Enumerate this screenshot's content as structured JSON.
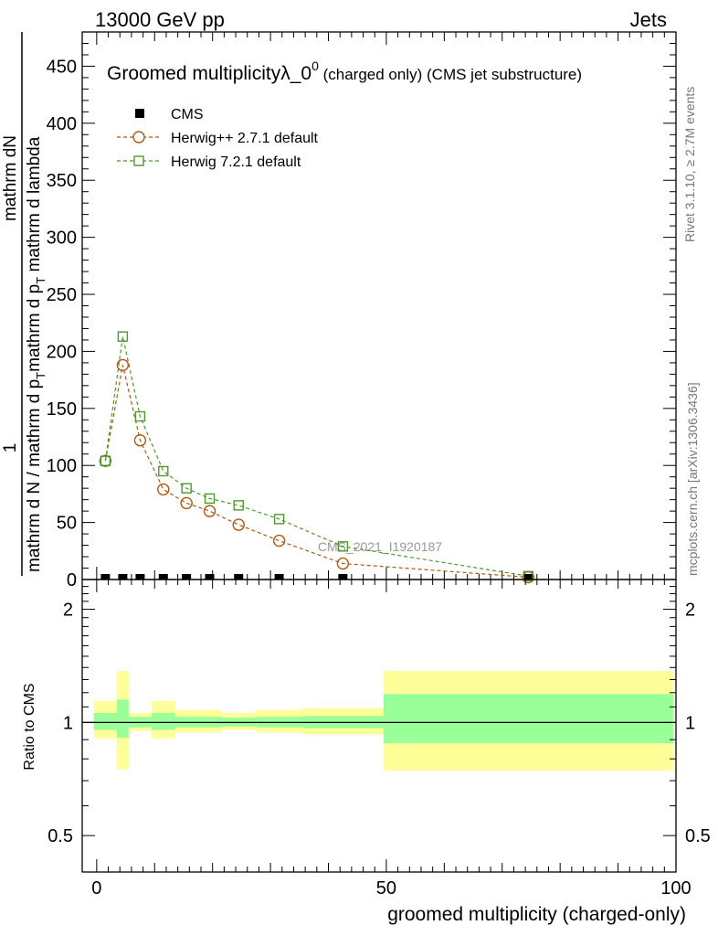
{
  "header": {
    "left": "13000 GeV pp",
    "right": "Jets"
  },
  "side_labels": {
    "rivet": "Rivet 3.1.10, ≥ 2.7M events",
    "mcplots": "mcplots.cern.ch [arXiv:1306.3436]"
  },
  "watermark": "CMS_2021_I1920187",
  "chart_data": [
    {
      "type": "line",
      "title_main": "Groomed multiplicityλ_0",
      "title_sup": "0",
      "title_rest": " (charged only) (CMS jet substructure)",
      "ylabel_numerator": "mathrm dN",
      "ylabel_denominator_lines": [
        "mathrm d N / mathrm d p",
        "T",
        "mathrm d p",
        "T",
        " mathrm d lambda"
      ],
      "ylabel_one": "1",
      "ylabel_numer_prefix": "mathrm d",
      "ylabel_numer_suffix": "N",
      "ylabel_line_b": "mathrm d p",
      "ylabel_sub_T": "T",
      "ylabel_line_c": " mathrm d lambda",
      "ylabel_line_d": "mathrm d N / mathrm d p",
      "ylabel_line_e": "mathrm d p",
      "ylabel_line_f": "mathrm d lambda",
      "xlim": [
        -2.5,
        100
      ],
      "ylim": [
        0,
        480
      ],
      "yticks": [
        0,
        50,
        100,
        150,
        200,
        250,
        300,
        350,
        400,
        450
      ],
      "series": [
        {
          "name": "CMS",
          "style": "marker-square-filled",
          "color": "#000000",
          "x": [
            1.5,
            4.5,
            7.5,
            11.5,
            15.5,
            19.5,
            24.5,
            31.5,
            42.5,
            74.5
          ],
          "y": [
            0,
            0,
            0,
            0,
            0,
            0,
            0,
            0,
            0,
            0
          ]
        },
        {
          "name": "Herwig++ 2.7.1 default",
          "style": "marker-circle-open dashed",
          "color": "#b05a10",
          "x": [
            1.5,
            4.5,
            7.5,
            11.5,
            15.5,
            19.5,
            24.5,
            31.5,
            42.5,
            74.5
          ],
          "y": [
            104,
            188,
            122,
            79,
            67,
            60,
            48,
            34,
            14,
            2
          ]
        },
        {
          "name": "Herwig 7.2.1 default",
          "style": "marker-square-open dashed",
          "color": "#4c9a2a",
          "x": [
            1.5,
            4.5,
            7.5,
            11.5,
            15.5,
            19.5,
            24.5,
            31.5,
            42.5,
            74.5
          ],
          "y": [
            104,
            213,
            143,
            95,
            80,
            71,
            65,
            53,
            29,
            3
          ]
        }
      ]
    },
    {
      "type": "area",
      "ylabel": "Ratio to CMS",
      "xlabel": "groomed multiplicity (charged-only)",
      "xlim": [
        -2.5,
        100
      ],
      "ylim": [
        0.4,
        2.4
      ],
      "scale": "log",
      "yticks": [
        0.5,
        1,
        2
      ],
      "ytick_labels": [
        "0.5",
        "1",
        "2"
      ],
      "xticks": [
        0,
        50,
        100
      ],
      "xtick_labels": [
        "0",
        "50",
        "100"
      ],
      "reference_line": 1,
      "bands": [
        {
          "x0": -0.5,
          "x1": 3.5,
          "inner": [
            0.955,
            1.06
          ],
          "outer": [
            0.905,
            1.14
          ]
        },
        {
          "x0": 3.5,
          "x1": 5.5,
          "inner": [
            0.91,
            1.15
          ],
          "outer": [
            0.75,
            1.37
          ]
        },
        {
          "x0": 5.5,
          "x1": 9.5,
          "inner": [
            0.97,
            1.035
          ],
          "outer": [
            0.95,
            1.06
          ]
        },
        {
          "x0": 9.5,
          "x1": 13.5,
          "inner": [
            0.955,
            1.06
          ],
          "outer": [
            0.905,
            1.14
          ]
        },
        {
          "x0": 13.5,
          "x1": 21.5,
          "inner": [
            0.97,
            1.035
          ],
          "outer": [
            0.94,
            1.08
          ]
        },
        {
          "x0": 21.5,
          "x1": 27.5,
          "inner": [
            0.975,
            1.03
          ],
          "outer": [
            0.955,
            1.06
          ]
        },
        {
          "x0": 27.5,
          "x1": 35.5,
          "inner": [
            0.97,
            1.035
          ],
          "outer": [
            0.94,
            1.08
          ]
        },
        {
          "x0": 35.5,
          "x1": 49.5,
          "inner": [
            0.965,
            1.04
          ],
          "outer": [
            0.93,
            1.09
          ]
        },
        {
          "x0": 49.5,
          "x1": 99.5,
          "inner": [
            0.88,
            1.19
          ],
          "outer": [
            0.745,
            1.37
          ]
        }
      ],
      "band_colors": {
        "inner": "#99ff99",
        "outer": "#ffff99"
      }
    }
  ]
}
